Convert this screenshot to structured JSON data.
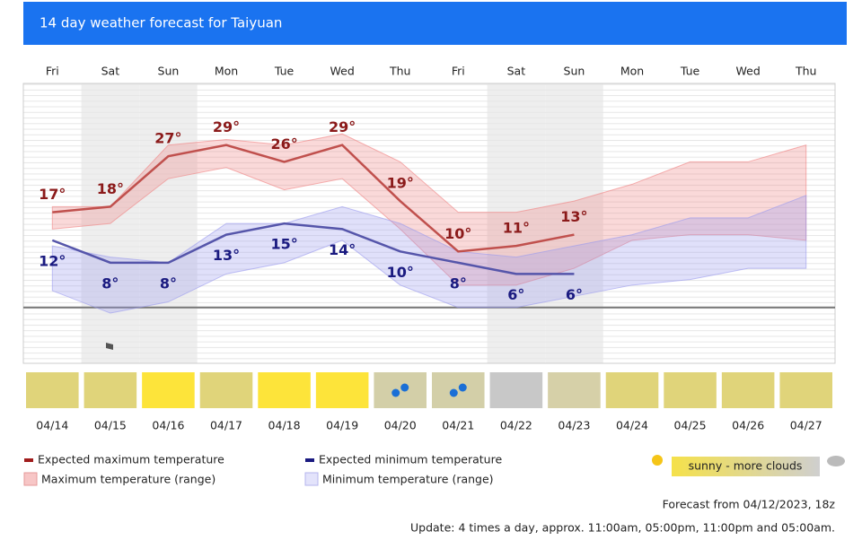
{
  "header": {
    "title": "14 day weather forecast for Taiyuan"
  },
  "chart_data": {
    "type": "line",
    "weekdays": [
      "Fri",
      "Sat",
      "Sun",
      "Mon",
      "Tue",
      "Wed",
      "Thu",
      "Fri",
      "Sat",
      "Sun",
      "Mon",
      "Tue",
      "Wed",
      "Thu"
    ],
    "categories": [
      "04/14",
      "04/15",
      "04/16",
      "04/17",
      "04/18",
      "04/19",
      "04/20",
      "04/21",
      "04/22",
      "04/23",
      "04/24",
      "04/25",
      "04/26",
      "04/27"
    ],
    "weekend_shading": [
      false,
      true,
      true,
      false,
      false,
      false,
      false,
      false,
      true,
      true,
      false,
      false,
      false,
      false
    ],
    "ylim": [
      -9,
      40
    ],
    "series": [
      {
        "name": "Expected maximum temperature",
        "color": "#c0504d",
        "label_color": "#8b1a1a",
        "values": [
          17,
          18,
          27,
          29,
          26,
          29,
          19,
          10,
          11,
          13,
          null,
          null,
          null,
          null
        ],
        "value_labels": [
          "17°",
          "18°",
          "27°",
          "29°",
          "26°",
          "29°",
          "19°",
          "10°",
          "11°",
          "13°",
          null,
          null,
          null,
          null
        ]
      },
      {
        "name": "Expected minimum temperature",
        "color": "#5555aa",
        "label_color": "#1a1a80",
        "values": [
          12,
          8,
          8,
          13,
          15,
          14,
          10,
          8,
          6,
          6,
          null,
          null,
          null,
          null
        ],
        "value_labels": [
          "12°",
          "8°",
          "8°",
          "13°",
          "15°",
          "14°",
          "10°",
          "8°",
          "6°",
          "6°",
          null,
          null,
          null,
          null
        ]
      }
    ],
    "bands": [
      {
        "name": "Maximum temperature (range)",
        "color": "#f08080",
        "high": [
          18,
          18,
          29,
          30,
          29,
          31,
          26,
          17,
          17,
          19,
          22,
          26,
          26,
          29
        ],
        "low": [
          14,
          15,
          23,
          25,
          21,
          23,
          14,
          4,
          4,
          7,
          12,
          13,
          13,
          12
        ]
      },
      {
        "name": "Minimum temperature (range)",
        "color": "#9999ee",
        "high": [
          11,
          9,
          8,
          15,
          15,
          18,
          15,
          10,
          9,
          11,
          13,
          16,
          16,
          20
        ],
        "low": [
          3,
          -1,
          1,
          6,
          8,
          12,
          4,
          0,
          0,
          2,
          4,
          5,
          7,
          7
        ]
      }
    ],
    "symbol_colors": [
      "#e0d47a",
      "#e0d47a",
      "#fde43a",
      "#e0d47a",
      "#fde43a",
      "#fde43a",
      "#d3cfa8",
      "#d3cfa8",
      "#c8c8c8",
      "#d6d0a8",
      "#e0d47a",
      "#e0d47a",
      "#e0d47a",
      "#e0d47a"
    ],
    "rain": [
      false,
      false,
      false,
      false,
      false,
      false,
      true,
      true,
      false,
      false,
      false,
      false,
      false,
      false
    ],
    "symbol_legend": "sunny - more clouds",
    "notes": [
      "Forecast from 04/12/2023, 18z",
      "Update: 4 times a day, approx. 11:00am, 05:00pm, 11:00pm and 05:00am."
    ]
  }
}
